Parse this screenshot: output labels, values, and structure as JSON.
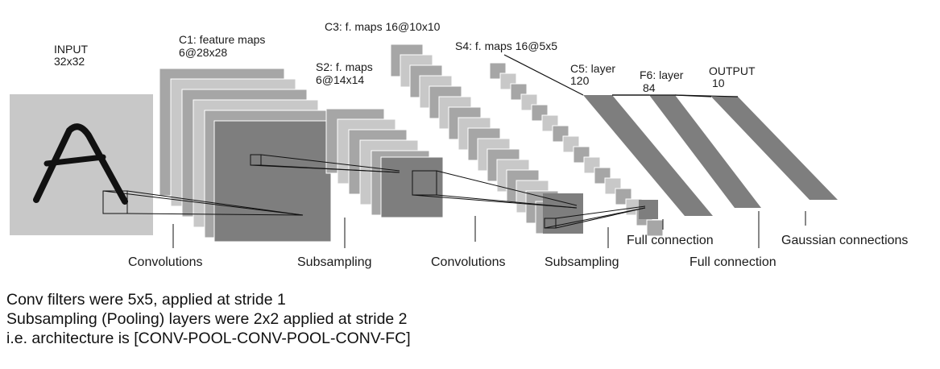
{
  "diagram": {
    "layers": {
      "input": {
        "name": "INPUT",
        "size": "32x32"
      },
      "c1": {
        "name": "C1: feature maps",
        "size": "6@28x28"
      },
      "s2": {
        "name": "S2: f. maps",
        "size": "6@14x14"
      },
      "c3": {
        "name": "C3: f. maps 16@10x10"
      },
      "s4": {
        "name": "S4: f. maps 16@5x5"
      },
      "c5": {
        "name": "C5: layer",
        "size": "120"
      },
      "f6": {
        "name": "F6: layer",
        "size": "84"
      },
      "output": {
        "name": "OUTPUT",
        "size": "10"
      }
    },
    "operations": {
      "conv1": "Convolutions",
      "sub1": "Subsampling",
      "conv2": "Convolutions",
      "sub2": "Subsampling",
      "full1": "Full connection",
      "full2": "Full connection",
      "gauss": "Gaussian connections"
    },
    "colors": {
      "light": "#c8c8c8",
      "mid": "#a6a6a6",
      "dark": "#7e7e7e",
      "ink": "#111111"
    }
  },
  "notes": [
    "Conv filters were 5x5, applied at stride 1",
    "Subsampling (Pooling) layers were 2x2 applied at stride 2",
    "i.e. architecture is [CONV-POOL-CONV-POOL-CONV-FC]"
  ]
}
